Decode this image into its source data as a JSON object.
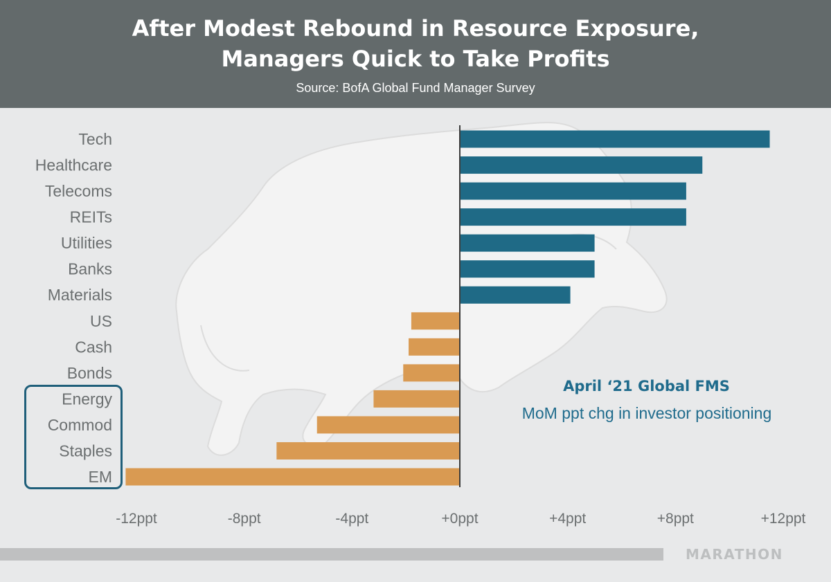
{
  "header": {
    "title_line1": "After Modest Rebound in Resource Exposure,",
    "title_line2": "Managers Quick to Take Profits",
    "subtitle": "Source: BofA Global Fund Manager Survey"
  },
  "annotation": {
    "title": "April ‘21 Global FMS",
    "text": "MoM ppt chg in investor positioning"
  },
  "brand": "MARATHON",
  "chart_data": {
    "type": "bar",
    "orientation": "horizontal",
    "categories": [
      "Tech",
      "Healthcare",
      "Telecoms",
      "REITs",
      "Utilities",
      "Banks",
      "Materials",
      "US",
      "Cash",
      "Bonds",
      "Energy",
      "Commod",
      "Staples",
      "EM"
    ],
    "values": [
      11.5,
      9.0,
      8.4,
      8.4,
      5.0,
      5.0,
      4.1,
      -1.8,
      -1.9,
      -2.1,
      -3.2,
      -5.3,
      -6.8,
      -12.4
    ],
    "xlim": [
      -12,
      12
    ],
    "xticks": [
      -12,
      -8,
      -4,
      0,
      4,
      8,
      12
    ],
    "xtick_labels": [
      "-12ppt",
      "-8ppt",
      "-4ppt",
      "+0ppt",
      "+4ppt",
      "+8ppt",
      "+12ppt"
    ],
    "highlighted_categories": [
      "Energy",
      "Commod",
      "Staples",
      "EM"
    ],
    "colors": {
      "positive": "#1f6a86",
      "negative": "#d99a52",
      "zero_line": "#3c3c3c",
      "highlight_box": "#1f5f7a"
    },
    "grid": false,
    "legend": "none"
  }
}
